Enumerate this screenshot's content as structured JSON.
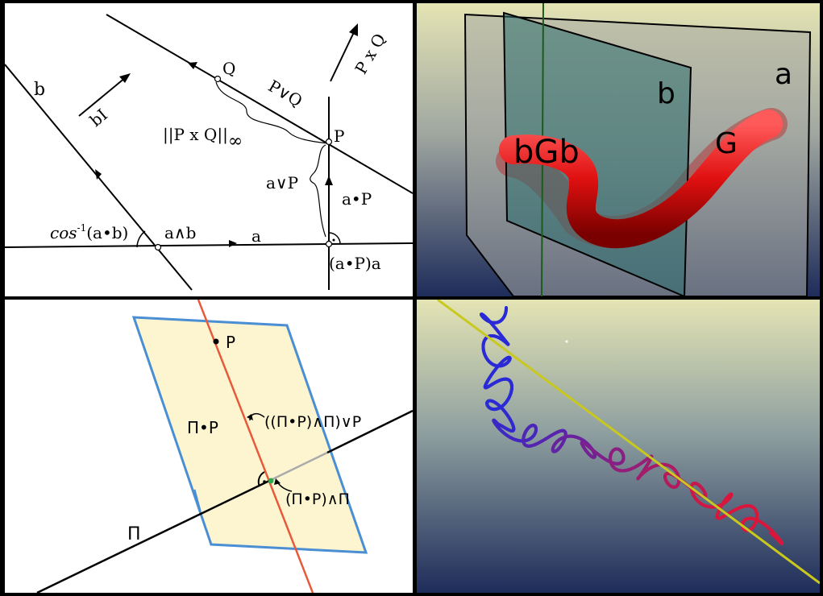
{
  "panel_tl": {
    "labels": {
      "b": "b",
      "bI": "bI",
      "Q": "Q",
      "P": "P",
      "PxQ": "P x Q",
      "PvQ": "P∨Q",
      "norm_main": "||P x Q||",
      "norm_sub": "∞",
      "avP": "a∨P",
      "adotP": "a•P",
      "cos_main": "cos",
      "cos_sup": "-1",
      "cos_arg": "(a•b)",
      "awedgeb": "a∧b",
      "a": "a",
      "proj": "(a•P)a"
    }
  },
  "panel_tr": {
    "labels": {
      "bGb": "bGb",
      "G": "G",
      "b": "b",
      "a": "a"
    }
  },
  "panel_bl": {
    "labels": {
      "P": "P",
      "PiP": "Π•P",
      "top": "((Π•P)∧Π)∨P",
      "bottom": "(Π•P)∧Π",
      "Pi": "Π"
    },
    "colors": {
      "plane_fill": "#fdf5d0",
      "plane_edge": "#4a8fd4",
      "line_red": "#e8593a",
      "line_dark": "#000000",
      "point_green": "#2fa84f"
    }
  },
  "panel_br": {
    "colors": {
      "helix_blue": "#2a2ad6",
      "helix_red": "#d9173c",
      "axis_yellow": "#c8c81e"
    }
  }
}
